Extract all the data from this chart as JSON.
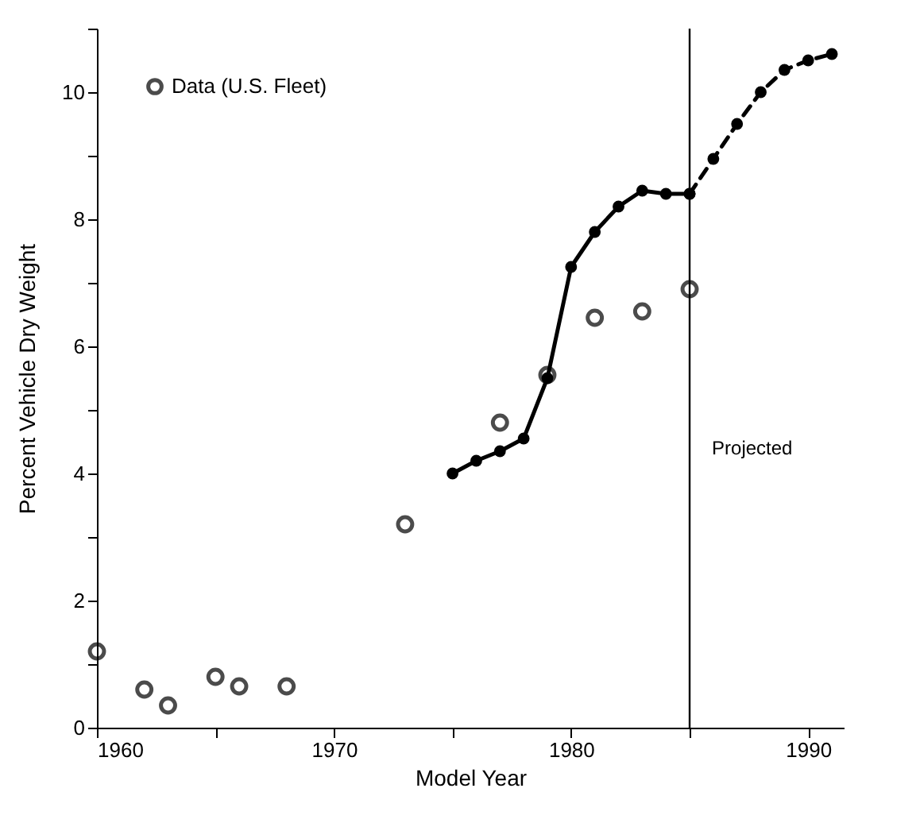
{
  "chart_data": {
    "type": "scatter",
    "xlabel": "Model Year",
    "ylabel": "Percent Vehicle Dry Weight",
    "xlim": [
      1960,
      1991.5
    ],
    "ylim": [
      0,
      11
    ],
    "xticks": [
      1960,
      {
        "value": 1965,
        "label": null
      },
      1970,
      {
        "value": 1975,
        "label": null
      },
      1980,
      {
        "value": 1985,
        "label": null
      },
      1990
    ],
    "yticks": [
      0,
      {
        "value": 1,
        "label": null
      },
      2,
      {
        "value": 3,
        "label": null
      },
      4,
      {
        "value": 5,
        "label": null
      },
      6,
      {
        "value": 7,
        "label": null
      },
      8,
      {
        "value": 9,
        "label": null
      },
      10,
      {
        "value": 11,
        "label": null
      }
    ],
    "grid": false,
    "legend": "top left",
    "marker": "circle",
    "series": [
      {
        "name": "Data (U.S. Fleet)",
        "type": "scatter",
        "color": "#000000",
        "x": [
          1960,
          1962,
          1963,
          1965,
          1966,
          1968,
          1973,
          1977,
          1979,
          1981,
          1983,
          1985
        ],
        "values": [
          1.2,
          0.6,
          0.35,
          0.8,
          0.65,
          0.65,
          3.2,
          4.8,
          5.55,
          6.45,
          6.55,
          6.9
        ]
      },
      {
        "type": "line",
        "color": "#000000",
        "line_style": "solid",
        "x": [
          1975,
          1976,
          1977,
          1978,
          1979,
          1980,
          1981,
          1982,
          1983,
          1984,
          1985
        ],
        "values": [
          4.0,
          4.2,
          4.35,
          4.55,
          5.5,
          7.25,
          7.8,
          8.2,
          8.45,
          8.4,
          8.4
        ]
      },
      {
        "type": "line",
        "color": "#000000",
        "line_style": "dashed",
        "x": [
          1985,
          1986,
          1987,
          1988,
          1989,
          1990,
          1991
        ],
        "values": [
          8.4,
          8.95,
          9.5,
          10.0,
          10.35,
          10.5,
          10.6
        ]
      }
    ],
    "ref_lines": [
      {
        "axis": "x",
        "value": 1985,
        "label": "Projected"
      }
    ]
  }
}
